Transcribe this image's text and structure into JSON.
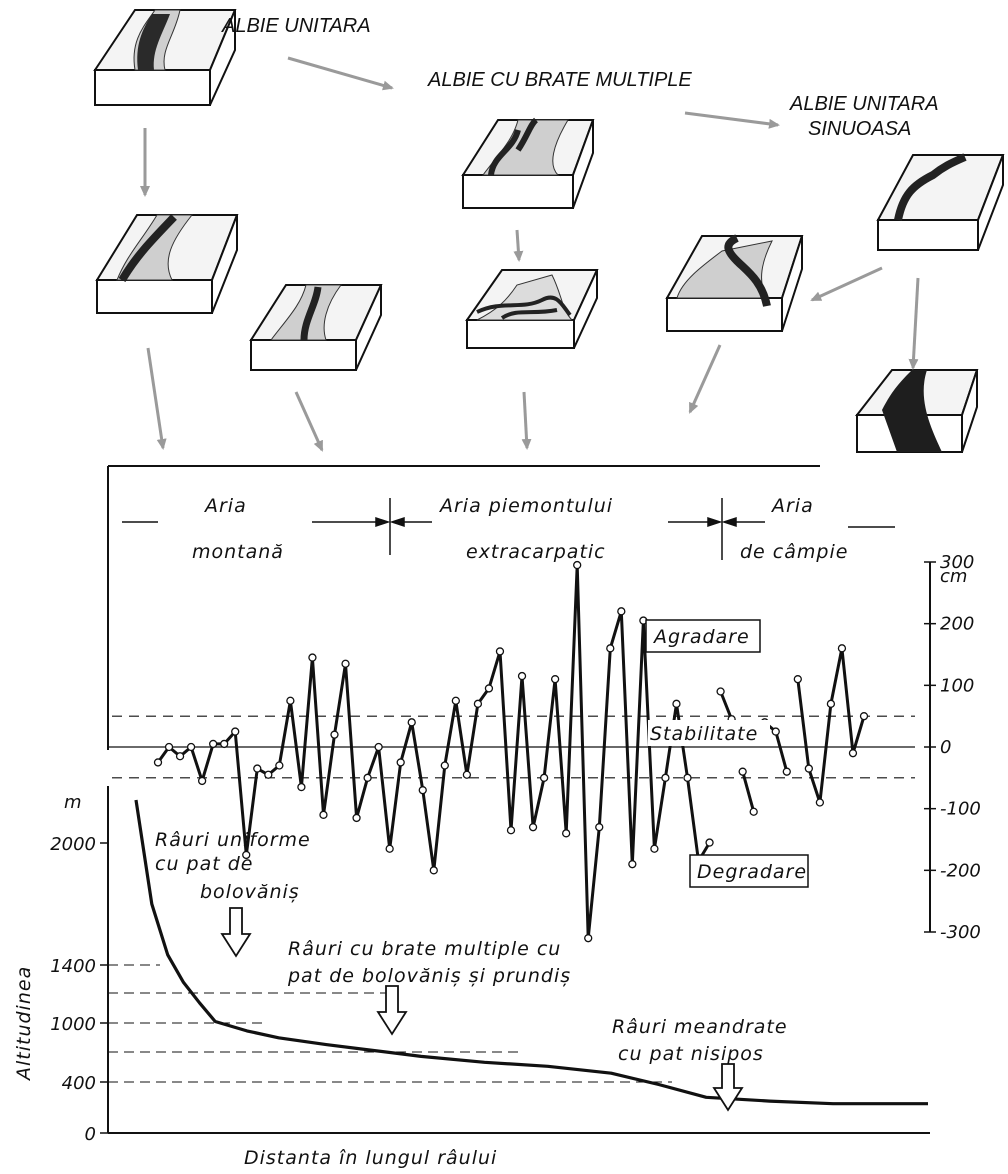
{
  "top_labels": {
    "albie_unitara": "ALBIE  UNITARA",
    "albie_brate": "ALBIE CU BRATE MULTIPLE",
    "albie_sinuoasa_1": "ALBIE UNITARA",
    "albie_sinuoasa_2": "SINUOASA"
  },
  "zones": {
    "montana_1": "Aria",
    "montana_2": "montană",
    "piemont_1": "Aria  piemontului",
    "piemont_2": "extracarpatic",
    "campie_1": "Aria",
    "campie_2": "de câmpie"
  },
  "labels": {
    "agradare": "Agradare",
    "stabilitate": "Stabilitate",
    "degradare": "Degradare",
    "alt_axis": "Altitudinea",
    "alt_unit": "m",
    "dist_axis": "Distanta  în lungul râului",
    "cm_unit": "cm",
    "uniforme_1": "Râuri uniforme",
    "uniforme_2": "cu pat  de",
    "uniforme_3": "bolovăniș",
    "brate_1": "Râuri cu brate multiple cu",
    "brate_2": "pat de bolovăniș și prundiș",
    "meandrate_1": "Râuri meandrate",
    "meandrate_2": "cu pat nisipos"
  },
  "chart_data": [
    {
      "type": "line",
      "name": "bed-level-change",
      "ylabel": "cm",
      "ylim": [
        -300,
        300
      ],
      "yticks": [
        "300",
        "200",
        "100",
        "0",
        "-100",
        "-200",
        "-300"
      ],
      "threshold_dashed": [
        50,
        -50
      ],
      "x": [
        1,
        2,
        3,
        4,
        5,
        6,
        7,
        8,
        9,
        10,
        11,
        12,
        13,
        14,
        15,
        16,
        17,
        18,
        19,
        20,
        21,
        22,
        23,
        24,
        25,
        26,
        27,
        28,
        29,
        30,
        31,
        32,
        33,
        34,
        35,
        36,
        37,
        38,
        39,
        40,
        41,
        42,
        43,
        44,
        45,
        46,
        47,
        48,
        49,
        50,
        51,
        52,
        53,
        54,
        55,
        56,
        57,
        58,
        59,
        60,
        61,
        62,
        63,
        64,
        65
      ],
      "values": [
        -25,
        0,
        -15,
        0,
        -55,
        5,
        5,
        25,
        -175,
        -35,
        -45,
        -30,
        75,
        -65,
        145,
        -110,
        20,
        135,
        -115,
        -50,
        0,
        -165,
        -25,
        40,
        -70,
        -200,
        -30,
        75,
        -45,
        70,
        95,
        155,
        -135,
        115,
        -130,
        -50,
        110,
        -140,
        295,
        -310,
        -130,
        160,
        220,
        -190,
        205,
        -165,
        -50,
        70,
        -50,
        -185,
        -155,
        90,
        45,
        -40,
        -105,
        40,
        25,
        -40,
        110,
        -35,
        -90,
        70,
        160,
        -10,
        50
      ]
    },
    {
      "type": "line",
      "name": "longitudinal-profile",
      "ylabel": "Altitudinea",
      "xlabel": "Distanta  în lungul râului",
      "yticks": [
        "0",
        "400",
        "1000",
        "1400",
        "2000"
      ],
      "y_dashed_levels": [
        1400,
        1000,
        800,
        600,
        400
      ],
      "x": [
        0,
        2,
        4,
        6,
        8,
        10,
        14,
        18,
        24,
        30,
        36,
        44,
        52,
        60,
        66,
        72,
        80,
        88,
        100
      ],
      "values": [
        2300,
        1700,
        1450,
        1280,
        1140,
        1010,
        920,
        850,
        780,
        720,
        660,
        600,
        560,
        490,
        380,
        280,
        250,
        230,
        230
      ]
    }
  ]
}
